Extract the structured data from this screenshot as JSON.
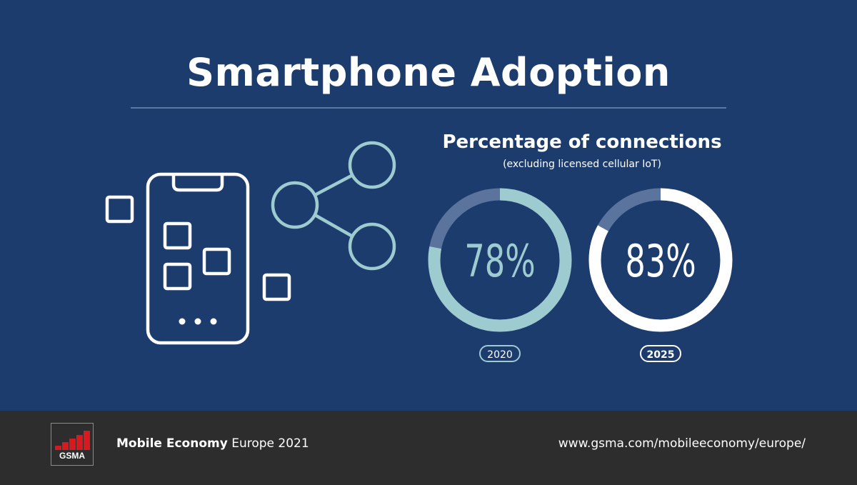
{
  "header": {
    "title": "Smartphone Adoption"
  },
  "chart_data": {
    "type": "pie",
    "title": "Percentage of connections",
    "subtitle": "(excluding licensed cellular IoT)",
    "categories": [
      "2020",
      "2025"
    ],
    "values": [
      78,
      83
    ],
    "value_labels": [
      "78%",
      "83%"
    ],
    "colors": {
      "2020_fill": "#9ecbd0",
      "2025_fill": "#ffffff",
      "remainder": "#5a749e"
    }
  },
  "icons": [
    "smartphone-icon",
    "share-icon"
  ],
  "footer": {
    "logo_text": "GSMA",
    "publication_bold": "Mobile Economy",
    "publication_rest": " Europe 2021",
    "url": "www.gsma.com/mobileeconomy/europe/"
  }
}
